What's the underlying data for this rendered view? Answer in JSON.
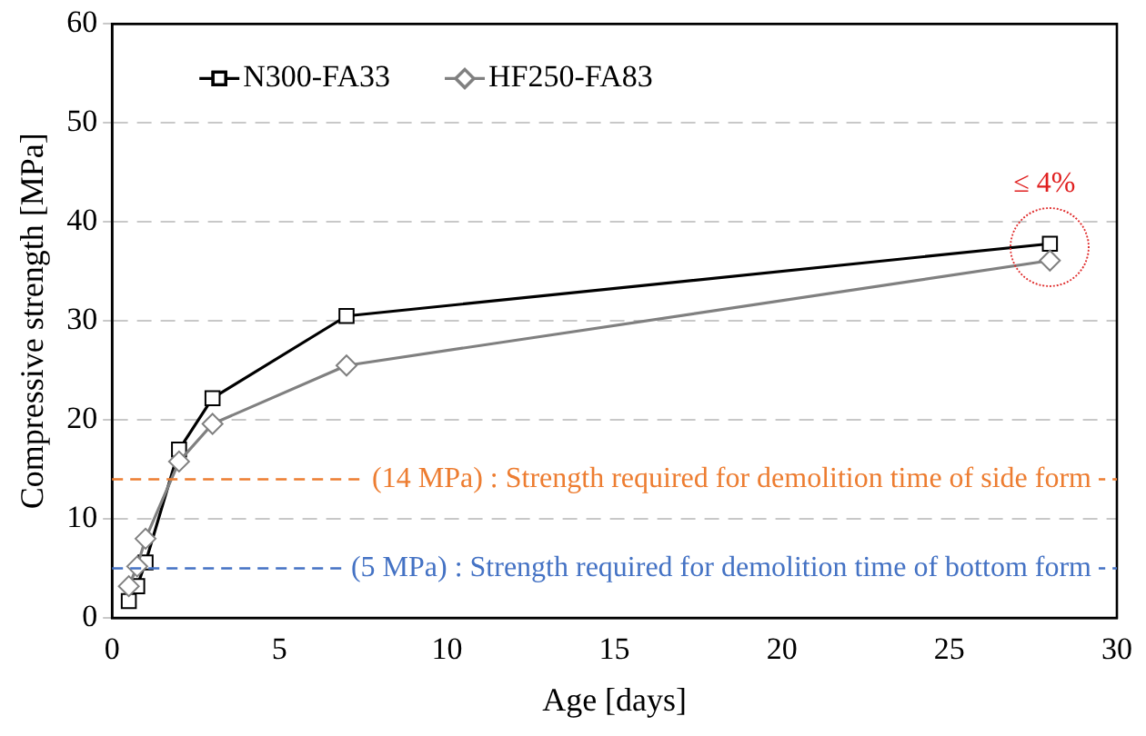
{
  "chart_data": {
    "type": "line",
    "xlabel": "Age [days]",
    "ylabel": "Compressive strength [MPa]",
    "xlim": [
      0,
      30
    ],
    "xticks": [
      0,
      5,
      10,
      15,
      20,
      25,
      30
    ],
    "ylim": [
      0,
      60
    ],
    "yticks": [
      0,
      10,
      20,
      30,
      40,
      50,
      60
    ],
    "grid": "y",
    "legend": "top left",
    "line_style": "solid",
    "series": [
      {
        "name": "N300-FA33",
        "color": "#000000",
        "marker": "square",
        "x": [
          0.5,
          0.75,
          1,
          2,
          3,
          7,
          28
        ],
        "values": [
          1.7,
          3.2,
          5.6,
          17,
          22.2,
          30.5,
          37.8
        ]
      },
      {
        "name": "HF250-FA83",
        "color": "#808080",
        "marker": "diamond",
        "x": [
          0.5,
          0.75,
          1,
          2,
          3,
          7,
          28
        ],
        "values": [
          3.2,
          5.2,
          8.0,
          15.8,
          19.6,
          25.5,
          36.1
        ]
      }
    ],
    "ref_lines": [
      {
        "axis": "y",
        "value": 14,
        "label": "(14 MPa) : Strength required for demolition time of side form",
        "color": "#ed7d31",
        "line_style": "dashed"
      },
      {
        "axis": "y",
        "value": 5,
        "label": "(5 MPa) : Strength required for demolition time of bottom form",
        "color": "#4472c4",
        "line_style": "dashed"
      }
    ],
    "annotations": [
      {
        "text": "≤ 4%",
        "x": 28,
        "y": 37.8
      }
    ]
  }
}
